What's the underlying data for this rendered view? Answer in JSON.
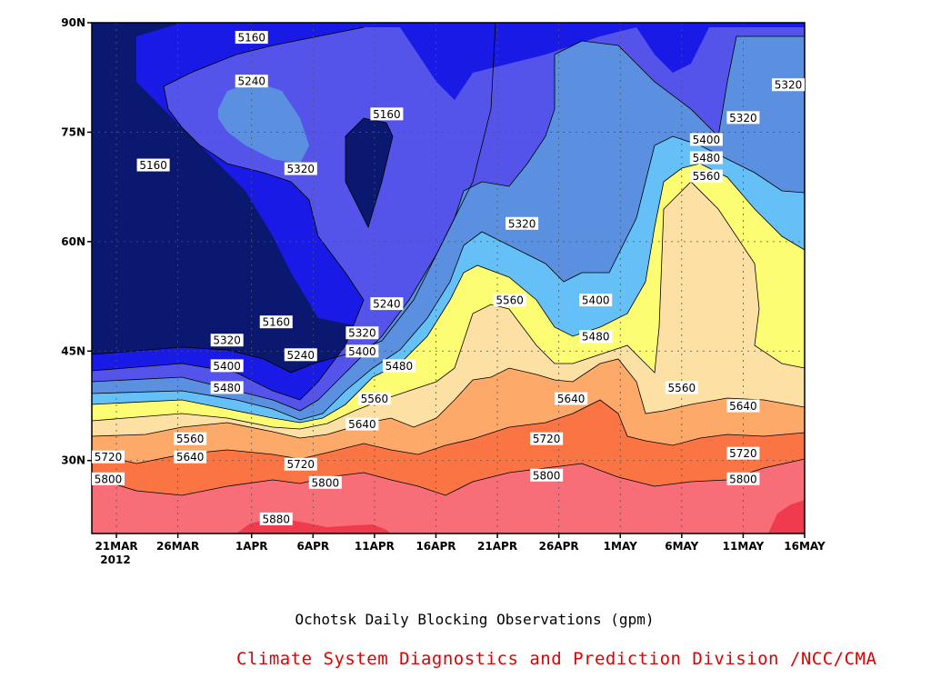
{
  "chart_data": {
    "type": "contour",
    "title": "Ochotsk Daily Blocking Observations (gpm)",
    "credit": "Climate System Diagnostics and Prediction Division /NCC/CMA",
    "x_axis": {
      "type": "date",
      "range": [
        "2012-03-19",
        "2012-05-16"
      ],
      "tick_labels": [
        "21MAR",
        "26MAR",
        "1APR",
        "6APR",
        "11APR",
        "16APR",
        "21APR",
        "26APR",
        "1MAY",
        "6MAY",
        "11MAY",
        "16MAY"
      ],
      "tick_dates": [
        "2012-03-21",
        "2012-03-26",
        "2012-04-01",
        "2012-04-06",
        "2012-04-11",
        "2012-04-16",
        "2012-04-21",
        "2012-04-26",
        "2012-05-01",
        "2012-05-06",
        "2012-05-11",
        "2012-05-16"
      ],
      "year_label": "2012"
    },
    "y_axis": {
      "unit": "degrees latitude north",
      "range": [
        20,
        90
      ],
      "tick_values": [
        30,
        45,
        60,
        75,
        90
      ],
      "tick_labels": [
        "30N",
        "45N",
        "60N",
        "75N",
        "90N"
      ]
    },
    "grid": "dotted",
    "levels": [
      5160,
      5240,
      5320,
      5400,
      5480,
      5560,
      5640,
      5720,
      5800,
      5880
    ],
    "fill_colors": {
      "below_5160": "#0b1870",
      "5160_5240": "#1a1ae6",
      "5240_5320": "#5454ea",
      "5320_5400": "#5b8fe0",
      "5400_5480": "#65c0f7",
      "5480_5560": "#fdfd73",
      "5560_5640": "#fde0a4",
      "5640_5720": "#fca96a",
      "5720_5800": "#fb7444",
      "5800_5880": "#f76e78",
      "above_5880": "#f03a4e"
    },
    "contour_labels": [
      {
        "value": "5160",
        "date": "2012-04-01",
        "lat": 88
      },
      {
        "value": "5240",
        "date": "2012-04-01",
        "lat": 82
      },
      {
        "value": "5160",
        "date": "2012-04-12",
        "lat": 77.5
      },
      {
        "value": "5160",
        "date": "2012-03-24",
        "lat": 70.5
      },
      {
        "value": "5320",
        "date": "2012-04-05",
        "lat": 70
      },
      {
        "value": "5320",
        "date": "2012-04-23",
        "lat": 62.5
      },
      {
        "value": "5320",
        "date": "2012-05-11",
        "lat": 77
      },
      {
        "value": "5320",
        "date": "2012-05-16",
        "lat": 81.5
      },
      {
        "value": "5400",
        "date": "2012-05-08",
        "lat": 74
      },
      {
        "value": "5480",
        "date": "2012-05-08",
        "lat": 71.5
      },
      {
        "value": "5560",
        "date": "2012-05-08",
        "lat": 69
      },
      {
        "value": "5240",
        "date": "2012-04-12",
        "lat": 51.5
      },
      {
        "value": "5160",
        "date": "2012-04-03",
        "lat": 49
      },
      {
        "value": "5240",
        "date": "2012-04-05",
        "lat": 44.5
      },
      {
        "value": "5320",
        "date": "2012-03-30",
        "lat": 46.5
      },
      {
        "value": "5320",
        "date": "2012-04-10",
        "lat": 47.5
      },
      {
        "value": "5400",
        "date": "2012-03-30",
        "lat": 43
      },
      {
        "value": "5400",
        "date": "2012-04-10",
        "lat": 45
      },
      {
        "value": "5480",
        "date": "2012-04-13",
        "lat": 43
      },
      {
        "value": "5480",
        "date": "2012-03-30",
        "lat": 40
      },
      {
        "value": "5560",
        "date": "2012-04-22",
        "lat": 52
      },
      {
        "value": "5400",
        "date": "2012-04-29",
        "lat": 52
      },
      {
        "value": "5480",
        "date": "2012-04-29",
        "lat": 47
      },
      {
        "value": "5560",
        "date": "2012-04-11",
        "lat": 38.5
      },
      {
        "value": "5640",
        "date": "2012-04-10",
        "lat": 35
      },
      {
        "value": "5560",
        "date": "2012-03-27",
        "lat": 33
      },
      {
        "value": "5640",
        "date": "2012-03-27",
        "lat": 30.5
      },
      {
        "value": "5640",
        "date": "2012-04-27",
        "lat": 38.5
      },
      {
        "value": "5560",
        "date": "2012-05-06",
        "lat": 40
      },
      {
        "value": "5640",
        "date": "2012-05-11",
        "lat": 37.5
      },
      {
        "value": "5720",
        "date": "2012-04-25",
        "lat": 33
      },
      {
        "value": "5720",
        "date": "2012-05-11",
        "lat": 31
      },
      {
        "value": "5720",
        "date": "2012-03-19",
        "lat": 30.5
      },
      {
        "value": "5720",
        "date": "2012-04-05",
        "lat": 29.5
      },
      {
        "value": "5800",
        "date": "2012-03-20",
        "lat": 27.5
      },
      {
        "value": "5800",
        "date": "2012-04-07",
        "lat": 27
      },
      {
        "value": "5800",
        "date": "2012-04-25",
        "lat": 28
      },
      {
        "value": "5800",
        "date": "2012-05-11",
        "lat": 27.5
      },
      {
        "value": "5880",
        "date": "2012-04-03",
        "lat": 22
      }
    ]
  }
}
